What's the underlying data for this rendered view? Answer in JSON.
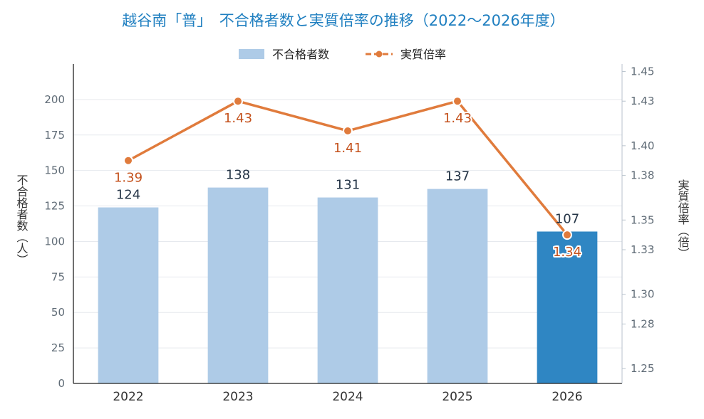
{
  "chart_data": {
    "type": "bar",
    "title": "越谷南「普」　不合格者数と実質倍率の推移（2022〜2026年度）",
    "categories": [
      "2022",
      "2023",
      "2024",
      "2025",
      "2026"
    ],
    "series": [
      {
        "name": "不合格者数",
        "type": "bar",
        "axis": "left",
        "values": [
          124,
          138,
          131,
          137,
          107
        ],
        "color": "#aecbe7",
        "highlight_color": "#2f86c3",
        "highlight_index": 4
      },
      {
        "name": "実質倍率",
        "type": "line",
        "axis": "right",
        "values": [
          1.39,
          1.43,
          1.41,
          1.43,
          1.34
        ],
        "color": "#e07b3c"
      }
    ],
    "ylabel": "不合格者数（人）",
    "y2label": "実質倍率（倍）",
    "ylim": [
      0,
      225
    ],
    "yticks": [
      0,
      25,
      50,
      75,
      100,
      125,
      150,
      175,
      200
    ],
    "y2lim": [
      1.24,
      1.455
    ],
    "y2ticks": [
      "1.25",
      "1.28",
      "1.30",
      "1.33",
      "1.35",
      "1.38",
      "1.40",
      "1.43",
      "1.45"
    ],
    "grid": true,
    "legend_position": "top-center"
  }
}
